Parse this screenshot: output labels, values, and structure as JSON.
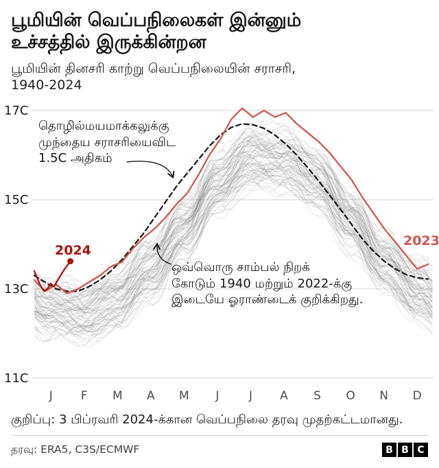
{
  "header": {
    "title": "பூமியின் வெப்பநிலைகள் இன்னும்\nஉச்சத்தில் இருக்கின்றன",
    "subtitle": "பூமியின் தினசரி காற்று வெப்பநிலையின் சராசரி,\n1940-2024"
  },
  "chart_data": {
    "type": "line",
    "title": "பூமியின் வெப்பநிலைகள் இன்னும் உச்சத்தில் இருக்கின்றன",
    "subtitle": "பூமியின் தினசரி காற்று வெப்பநிலையின் சராசரி, 1940-2024",
    "x_unit": "day_of_year",
    "months": [
      "J",
      "F",
      "M",
      "A",
      "M",
      "J",
      "J",
      "A",
      "S",
      "O",
      "N",
      "D"
    ],
    "yticks": [
      {
        "label": "17C",
        "value": 17
      },
      {
        "label": "15C",
        "value": 15
      },
      {
        "label": "13C",
        "value": 13
      },
      {
        "label": "11C",
        "value": 11
      }
    ],
    "ylim": [
      11,
      17.3
    ],
    "colors": {
      "grid": "#d6d6d6",
      "axis_text": "#1d1d1d",
      "month_text": "#4a4a4a",
      "annotation": "#1a1a1a"
    },
    "series": [
      {
        "name": "threshold_1_5C_above_preindustrial",
        "label": "தொழில்மயமாக்கலுக்கு முந்தைய சராசரியைவிட 1.5C அதிகம்",
        "style": "dashed",
        "color": "#1a1a1a",
        "days": [
          0,
          10,
          20,
          30,
          40,
          50,
          60,
          70,
          80,
          90,
          100,
          110,
          120,
          130,
          140,
          150,
          160,
          170,
          180,
          190,
          200,
          210,
          220,
          230,
          240,
          250,
          260,
          270,
          280,
          290,
          300,
          310,
          320,
          330,
          340,
          350,
          360
        ],
        "values": [
          13.3,
          13.15,
          13.0,
          12.95,
          12.95,
          13.05,
          13.2,
          13.4,
          13.65,
          13.95,
          14.25,
          14.6,
          14.95,
          15.3,
          15.6,
          15.9,
          16.2,
          16.45,
          16.62,
          16.7,
          16.68,
          16.6,
          16.45,
          16.25,
          16.0,
          15.72,
          15.42,
          15.1,
          14.78,
          14.45,
          14.12,
          13.85,
          13.62,
          13.45,
          13.32,
          13.25,
          13.22
        ]
      },
      {
        "name": "2023",
        "label": "2023",
        "style": "solid",
        "color": "#d0564c",
        "days": [
          0,
          10,
          20,
          30,
          40,
          50,
          60,
          70,
          80,
          90,
          100,
          110,
          120,
          130,
          140,
          150,
          160,
          170,
          180,
          190,
          200,
          210,
          220,
          230,
          240,
          250,
          260,
          270,
          280,
          290,
          300,
          310,
          320,
          330,
          340,
          350,
          360
        ],
        "values": [
          13.2,
          12.95,
          13.1,
          12.9,
          13.0,
          13.15,
          13.3,
          13.5,
          13.6,
          13.9,
          14.15,
          14.35,
          14.6,
          14.9,
          15.15,
          15.55,
          16.0,
          16.35,
          16.8,
          17.05,
          16.85,
          17.0,
          16.85,
          16.95,
          16.7,
          16.5,
          16.3,
          16.05,
          15.75,
          15.45,
          15.05,
          14.7,
          14.35,
          14.05,
          13.75,
          13.45,
          13.55
        ]
      },
      {
        "name": "2024",
        "label": "2024",
        "style": "solid",
        "endpoint_dot": true,
        "color": "#a6150e",
        "days": [
          0,
          3,
          6,
          9,
          12,
          15,
          18,
          21,
          24,
          27,
          30,
          33
        ],
        "values": [
          13.4,
          13.22,
          13.05,
          12.95,
          13.0,
          13.12,
          13.05,
          13.18,
          13.3,
          13.42,
          13.52,
          13.62
        ]
      }
    ],
    "background_series": {
      "label": "ஒவ்வொரு சாம்பல் நிறக் கோடும் 1940 மற்றும் 2022-க்கு இடையே ஓராண்டைக் குறிக்கிறது.",
      "year_start": 1940,
      "year_end": 2022,
      "count": 83,
      "color": "rgba(105,105,105,0.16)",
      "monthly_base": [
        12.55,
        12.45,
        12.8,
        13.45,
        14.35,
        15.35,
        15.95,
        15.9,
        15.45,
        14.55,
        13.6,
        12.95
      ],
      "spread": 0.55
    },
    "annotations": [
      {
        "text": "தொழில்மயமாக்கலுக்கு\nமுந்தைய சராசரியைவிட\n1.5C அதிகம்"
      },
      {
        "text": "ஒவ்வொரு சாம்பல் நிறக்\nகோடும் 1940 மற்றும் 2022-க்கு\nஇடையே ஓராண்டைக் குறிக்கிறது."
      }
    ],
    "line_labels": {
      "y2023": "2023",
      "y2024": "2024"
    }
  },
  "note": "குறிப்பு: 3 பிப்ரவரி 2024-க்கான வெப்பநிலை தரவு முதற்கட்டமானது.",
  "source": "தரவு: ERA5, C3S/ECMWF",
  "logo": {
    "letters": [
      "B",
      "B",
      "C"
    ]
  }
}
